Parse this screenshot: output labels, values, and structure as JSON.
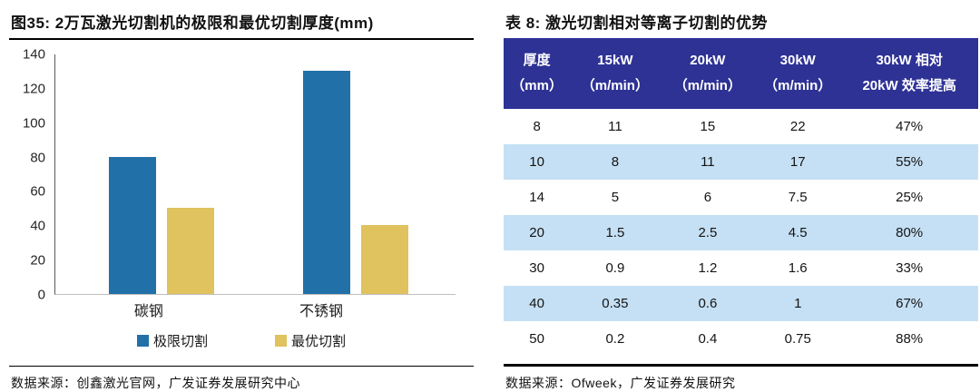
{
  "figure": {
    "title": "图35:  2万瓦激光切割机的极限和最优切割厚度(mm)",
    "source": "数据来源：创鑫激光官网，广发证券发展研究中心"
  },
  "table": {
    "title": "表 8:  激光切割相对等离子切割的优势",
    "source": "数据来源：Ofweek，广发证券发展研究",
    "header_bg": "#2e3295",
    "stripe_bg": "#c5e0f4",
    "columns": [
      {
        "line1": "厚度",
        "line2": "（mm）"
      },
      {
        "line1": "15kW",
        "line2": "（m/min）"
      },
      {
        "line1": "20kW",
        "line2": "（m/min）"
      },
      {
        "line1": "30kW",
        "line2": "（m/min）"
      },
      {
        "line1": "30kW 相对",
        "line2": "20kW 效率提高"
      }
    ],
    "rows": [
      [
        "8",
        "11",
        "15",
        "22",
        "47%"
      ],
      [
        "10",
        "8",
        "11",
        "17",
        "55%"
      ],
      [
        "14",
        "5",
        "6",
        "7.5",
        "25%"
      ],
      [
        "20",
        "1.5",
        "2.5",
        "4.5",
        "80%"
      ],
      [
        "30",
        "0.9",
        "1.2",
        "1.6",
        "33%"
      ],
      [
        "40",
        "0.35",
        "0.6",
        "1",
        "67%"
      ],
      [
        "50",
        "0.2",
        "0.4",
        "0.75",
        "88%"
      ]
    ]
  },
  "chart_data": [
    {
      "type": "bar",
      "title": "图35:  2万瓦激光切割机的极限和最优切割厚度(mm)",
      "categories": [
        "碳钢",
        "不锈钢"
      ],
      "series": [
        {
          "name": "极限切割",
          "values": [
            80,
            130
          ],
          "color": "#2171a8"
        },
        {
          "name": "最优切割",
          "values": [
            50,
            40
          ],
          "color": "#e0c25e"
        }
      ],
      "xlabel": "",
      "ylabel": "",
      "ylim": [
        0,
        140
      ],
      "yticks": [
        0,
        20,
        40,
        60,
        80,
        100,
        120,
        140
      ],
      "grid": false,
      "legend_position": "bottom"
    },
    {
      "type": "table",
      "title": "表 8:  激光切割相对等离子切割的优势",
      "columns": [
        "厚度（mm）",
        "15kW（m/min）",
        "20kW（m/min）",
        "30kW（m/min）",
        "30kW 相对 20kW 效率提高"
      ],
      "rows": [
        [
          "8",
          "11",
          "15",
          "22",
          "47%"
        ],
        [
          "10",
          "8",
          "11",
          "17",
          "55%"
        ],
        [
          "14",
          "5",
          "6",
          "7.5",
          "25%"
        ],
        [
          "20",
          "1.5",
          "2.5",
          "4.5",
          "80%"
        ],
        [
          "30",
          "0.9",
          "1.2",
          "1.6",
          "33%"
        ],
        [
          "40",
          "0.35",
          "0.6",
          "1",
          "67%"
        ],
        [
          "50",
          "0.2",
          "0.4",
          "0.75",
          "88%"
        ]
      ]
    }
  ]
}
